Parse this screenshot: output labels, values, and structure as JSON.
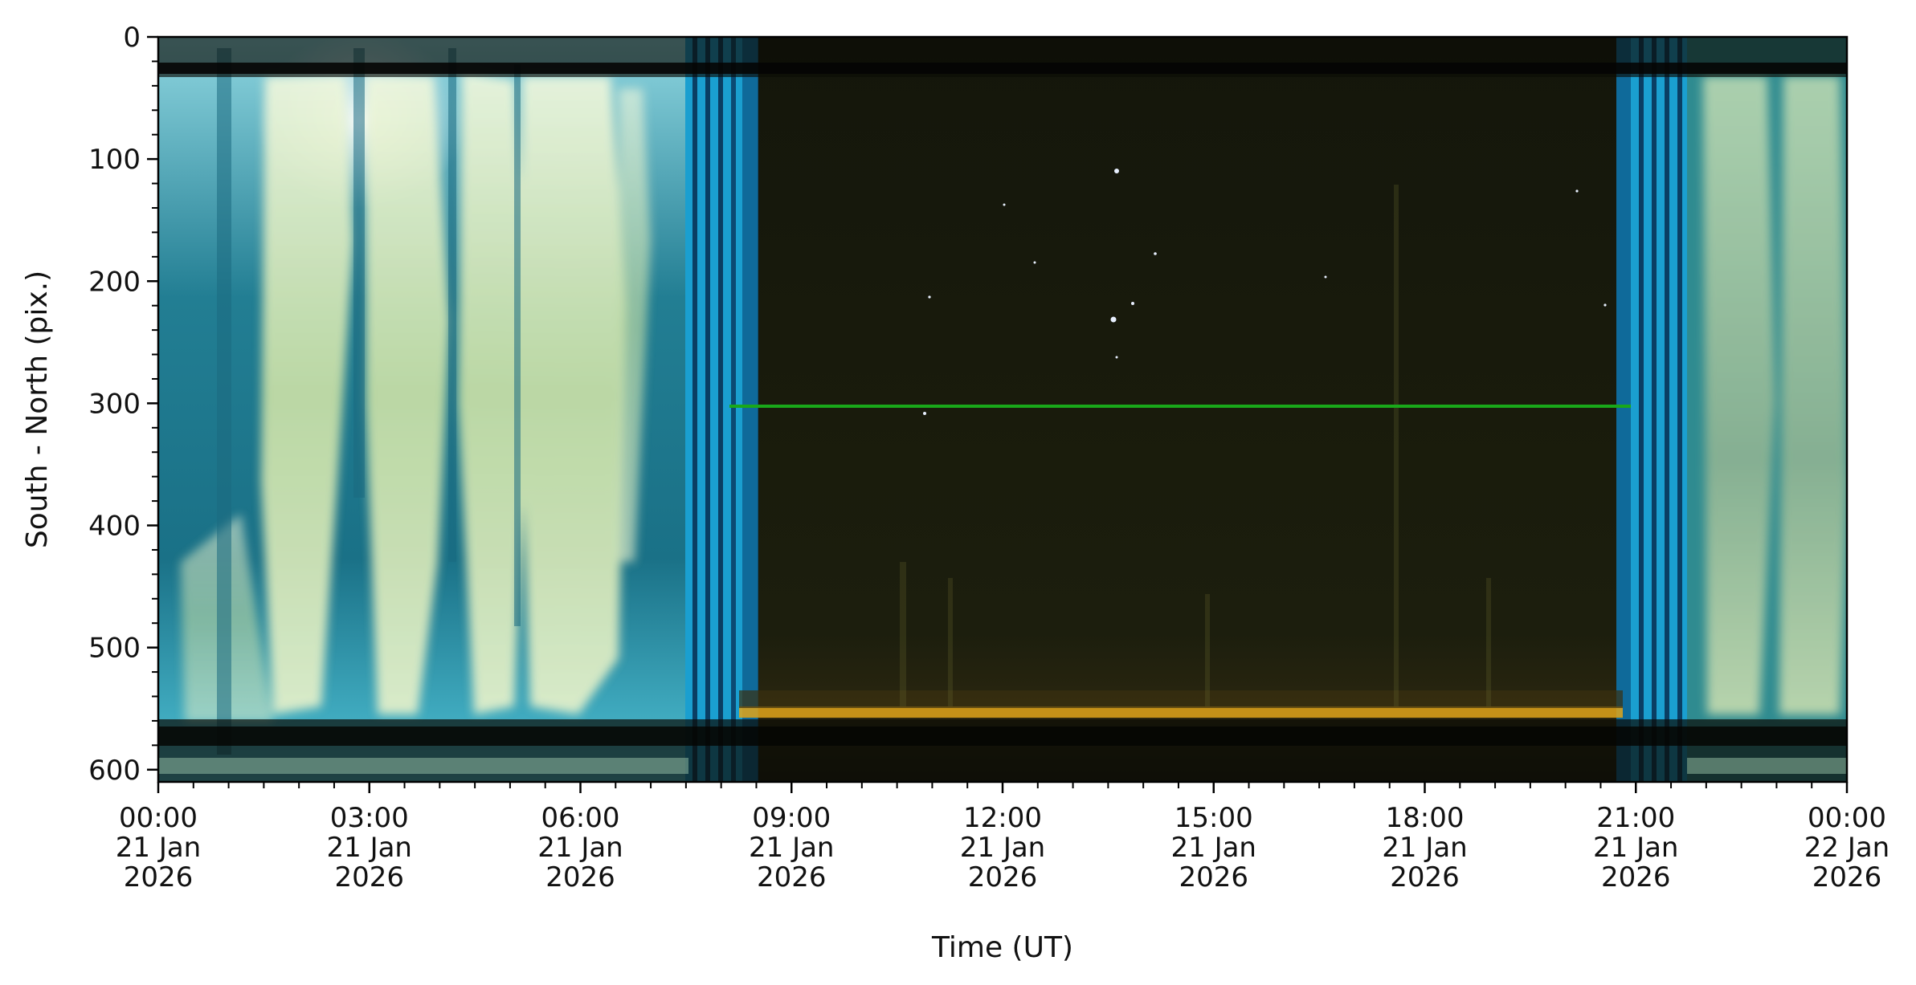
{
  "chart_data": {
    "type": "heatmap",
    "title": "",
    "xlabel": "Time (UT)",
    "ylabel": "South - North (pix.)",
    "ylim": [
      610,
      0
    ],
    "y_ticks": [
      0,
      100,
      200,
      300,
      400,
      500,
      600
    ],
    "x_ticks": [
      {
        "hour": 0,
        "lines": [
          "00:00",
          "21 Jan",
          "2026"
        ]
      },
      {
        "hour": 3,
        "lines": [
          "03:00",
          "21 Jan",
          "2026"
        ]
      },
      {
        "hour": 6,
        "lines": [
          "06:00",
          "21 Jan",
          "2026"
        ]
      },
      {
        "hour": 9,
        "lines": [
          "09:00",
          "21 Jan",
          "2026"
        ]
      },
      {
        "hour": 12,
        "lines": [
          "12:00",
          "21 Jan",
          "2026"
        ]
      },
      {
        "hour": 15,
        "lines": [
          "15:00",
          "21 Jan",
          "2026"
        ]
      },
      {
        "hour": 18,
        "lines": [
          "18:00",
          "21 Jan",
          "2026"
        ]
      },
      {
        "hour": 21,
        "lines": [
          "21:00",
          "21 Jan",
          "2026"
        ]
      },
      {
        "hour": 24,
        "lines": [
          "00:00",
          "22 Jan",
          "2026"
        ]
      }
    ],
    "x_minor_tick_step_hours": 0.5,
    "y_minor_tick_step": 20,
    "grid": false,
    "features": {
      "day_sky_color": "#1f7f94",
      "cloud_color": "#d4e8b4",
      "twilight_color": "#1ba6d8",
      "night_sky_color": "#13150a",
      "horizon_glow_color": "#e0a41a",
      "reference_line_color": "#19a81a",
      "reference_line_y": 302,
      "horizon_y": 555,
      "top_band_y": [
        0,
        32
      ],
      "bottom_band_y": [
        557,
        607
      ]
    }
  }
}
